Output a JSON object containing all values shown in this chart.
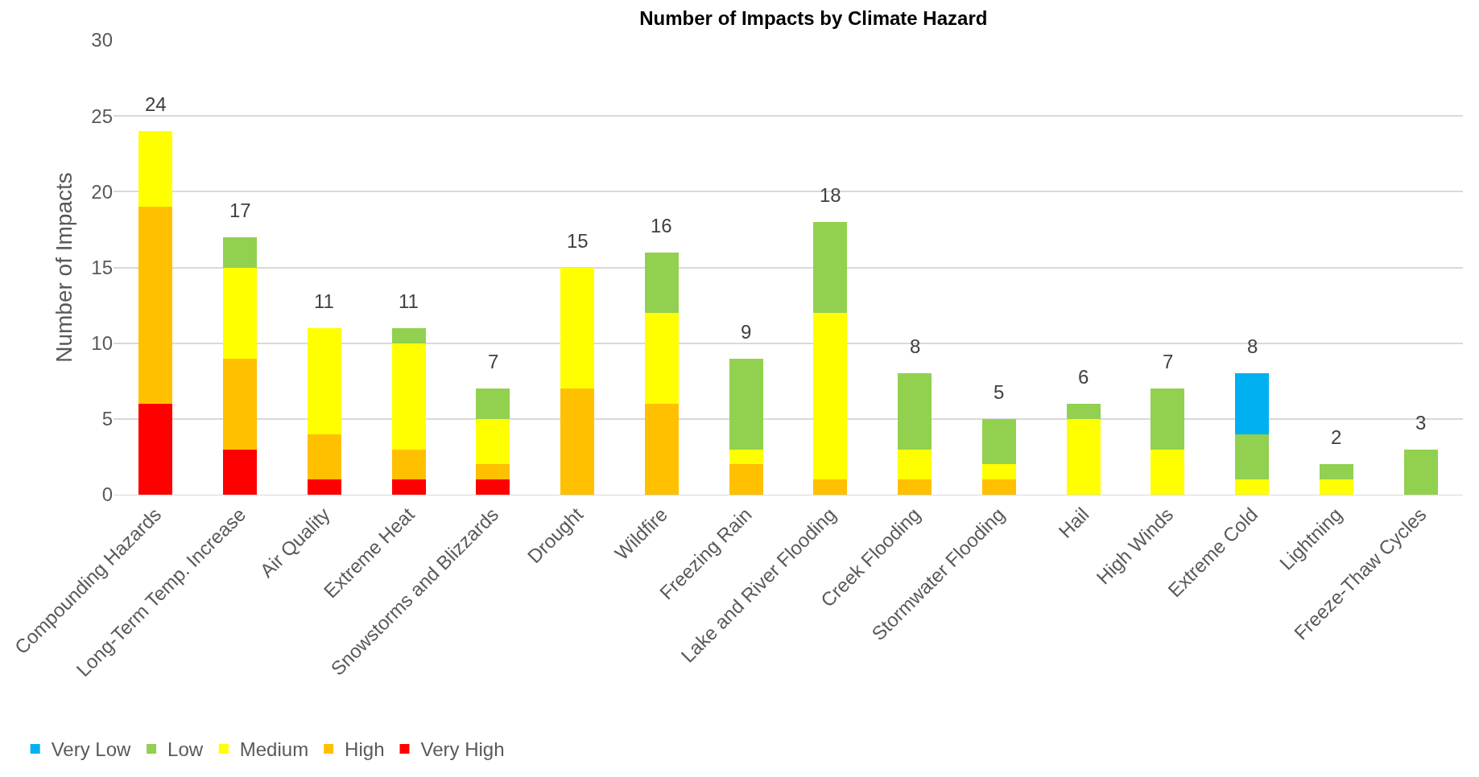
{
  "chart_data": {
    "type": "bar",
    "title": "Number of Impacts by Climate Hazard",
    "ylabel": "Number of Impacts",
    "categories": [
      "Compounding Hazards",
      "Long-Term Temp. Increase",
      "Air Quality",
      "Extreme Heat",
      "Snowstorms and Blizzards",
      "Drought",
      "Wildfire",
      "Freezing Rain",
      "Lake and River Flooding",
      "Creek Flooding",
      "Stormwater Flooding",
      "Hail",
      "High Winds",
      "Extreme Cold",
      "Lightning",
      "Freeze-Thaw Cycles"
    ],
    "series": [
      {
        "name": "Very High",
        "color": "#ff0000",
        "values": [
          6,
          3,
          1,
          1,
          1,
          null,
          null,
          null,
          null,
          null,
          null,
          null,
          null,
          null,
          null,
          null
        ]
      },
      {
        "name": "High",
        "color": "#ffc000",
        "values": [
          13,
          6,
          3,
          2,
          1,
          7,
          6,
          2,
          1,
          1,
          1,
          null,
          null,
          null,
          null,
          null
        ]
      },
      {
        "name": "Medium",
        "color": "#ffff00",
        "values": [
          5,
          6,
          7,
          7,
          3,
          8,
          6,
          1,
          11,
          2,
          1,
          5,
          3,
          1,
          1,
          null
        ]
      },
      {
        "name": "Low",
        "color": "#92d050",
        "values": [
          null,
          2,
          null,
          1,
          2,
          null,
          4,
          6,
          6,
          5,
          3,
          1,
          4,
          3,
          1,
          3
        ]
      },
      {
        "name": "Very Low",
        "color": "#00b0f0",
        "values": [
          null,
          null,
          null,
          null,
          null,
          null,
          null,
          null,
          null,
          null,
          null,
          null,
          null,
          4,
          null,
          null
        ]
      }
    ],
    "stacked": true,
    "totals": [
      "24",
      "17",
      "11",
      "11",
      "7",
      "15",
      "16",
      "9",
      "18",
      "8",
      "5",
      "6",
      "7",
      "8",
      "2",
      "3"
    ],
    "ylim": [
      0,
      30
    ],
    "yticks": [
      0,
      5,
      10,
      15,
      20,
      25,
      30
    ],
    "grid": "y",
    "legend": "bottom left"
  }
}
